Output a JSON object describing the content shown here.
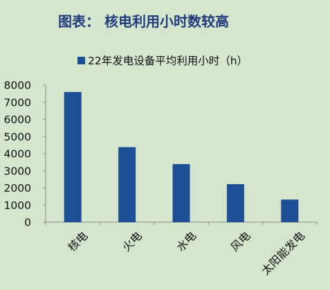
{
  "background": "#d5e6cf",
  "title_color": "#1f3b7a",
  "bar_color": "#1c4f95",
  "chart_data": {
    "type": "bar",
    "title": "图表：  核电利用小时数较高",
    "categories": [
      "核电",
      "火电",
      "水电",
      "风电",
      "太阳能发电"
    ],
    "series": [
      {
        "name": "22年发电设备平均利用小时（h）",
        "values": [
          7600,
          4380,
          3390,
          2220,
          1320
        ]
      }
    ],
    "ylim": [
      0,
      8000
    ],
    "yticks": [
      0,
      1000,
      2000,
      3000,
      4000,
      5000,
      6000,
      7000,
      8000
    ],
    "grid": false,
    "legend": "top"
  }
}
